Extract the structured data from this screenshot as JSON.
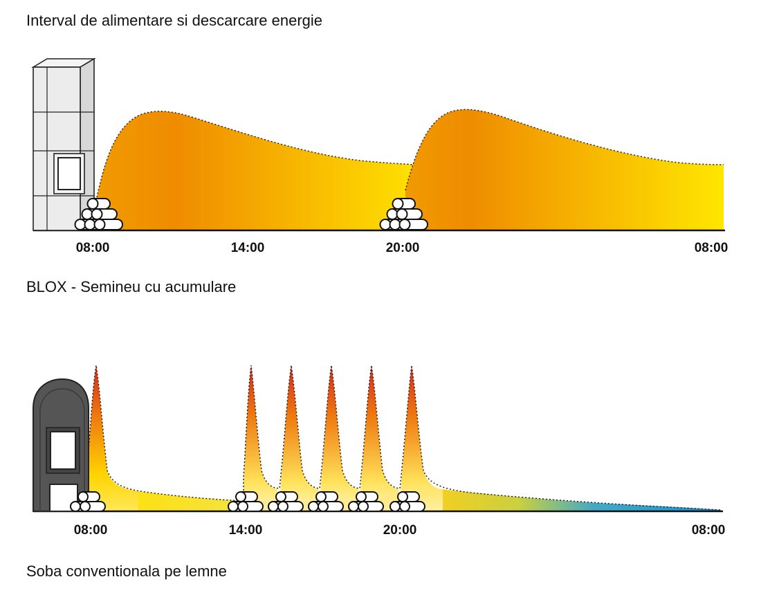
{
  "title": "Interval de alimentare si descarcare energie",
  "colors": {
    "orange": "#ef8c00",
    "yellow": "#ffe400",
    "red": "#d42a1c",
    "blue": "#1a94d4",
    "stove_dark": "#555555",
    "stove_light": "#eeeeee"
  },
  "blox": {
    "label": "BLOX - Semineu cu acumulare",
    "ticks": [
      "08:00",
      "14:00",
      "20:00",
      "08:00"
    ],
    "icons": [
      "storage-stove-icon",
      "firewood-stack-icon"
    ]
  },
  "soba": {
    "label": "Soba conventionala pe lemne",
    "ticks": [
      "08:00",
      "14:00",
      "20:00",
      "08:00"
    ],
    "icons": [
      "wood-stove-icon",
      "firewood-stack-icon"
    ]
  }
}
